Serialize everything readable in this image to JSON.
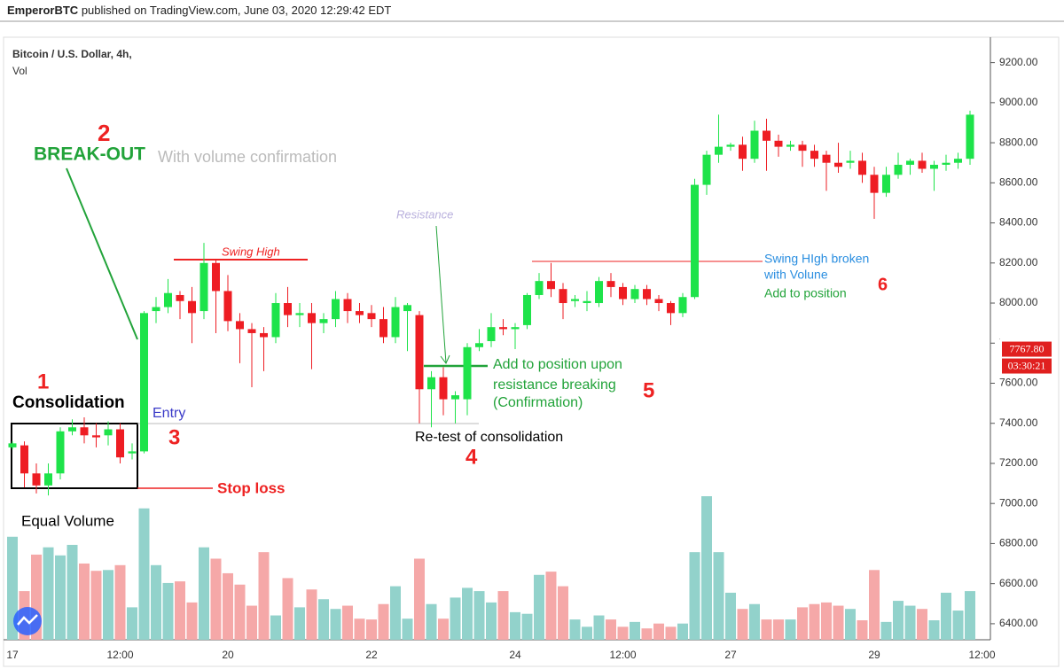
{
  "header": {
    "author": "EmperorBTC",
    "text": "published on TradingView.com, June 03, 2020 12:29:42 EDT"
  },
  "chart_data": {
    "type": "candlestick",
    "title": "Bitcoin / U.S. Dollar, 4h,",
    "subtitle": "Vol",
    "up_color": "#1ee34a",
    "down_color": "#ee1d23",
    "volume_up_color": "#92d2cb",
    "volume_down_color": "#f5a8a8",
    "categories": [
      "17",
      null,
      null,
      null,
      null,
      null,
      null,
      null,
      null,
      "12:00",
      null,
      null,
      null,
      null,
      null,
      null,
      null,
      null,
      "20",
      null,
      null,
      null,
      null,
      null,
      null,
      null,
      null,
      null,
      null,
      null,
      "22",
      null,
      null,
      null,
      null,
      null,
      null,
      null,
      null,
      null,
      null,
      null,
      "24",
      null,
      null,
      null,
      null,
      null,
      null,
      null,
      null,
      "12:00",
      null,
      null,
      null,
      null,
      null,
      null,
      null,
      null,
      "27",
      null,
      null,
      null,
      null,
      null,
      null,
      null,
      null,
      null,
      null,
      null,
      "29",
      null,
      null,
      null,
      null,
      null,
      null,
      null,
      null,
      "12:00"
    ],
    "open": [
      7280,
      7290,
      7150,
      7090,
      7150,
      7360,
      7380,
      7340,
      7340,
      7370,
      7250,
      7260,
      7960,
      7980,
      8040,
      8010,
      7960,
      8200,
      8060,
      7910,
      7870,
      7850,
      7830,
      8000,
      7940,
      7950,
      7900,
      7920,
      8020,
      7960,
      7950,
      7920,
      7830,
      7960,
      7940,
      7570,
      7630,
      7520,
      7520,
      7780,
      7810,
      7880,
      7870,
      7890,
      8040,
      8110,
      8070,
      8010,
      8000,
      8000,
      8110,
      8080,
      8020,
      8070,
      8020,
      8000,
      7950,
      8030,
      8590,
      8740,
      8780,
      8790,
      8720,
      8860,
      8810,
      8780,
      8790,
      8760,
      8740,
      8700,
      8700,
      8710,
      8640,
      8550,
      8640,
      8690,
      8710,
      8670,
      8690,
      8700,
      8720,
      null
    ],
    "high": [
      7310,
      7310,
      7200,
      7200,
      7380,
      7420,
      7430,
      7400,
      7410,
      7400,
      7300,
      7960,
      8030,
      8120,
      8060,
      8080,
      8300,
      8220,
      8140,
      7950,
      7900,
      7880,
      8050,
      8080,
      8000,
      8000,
      7950,
      8060,
      8050,
      8000,
      7990,
      7980,
      8030,
      8000,
      7960,
      7660,
      7680,
      7560,
      7800,
      7870,
      7950,
      7920,
      7900,
      8050,
      8150,
      8200,
      8100,
      8040,
      8060,
      8130,
      8150,
      8100,
      8090,
      8090,
      8040,
      8010,
      8050,
      8620,
      8760,
      8940,
      8800,
      8830,
      8910,
      8920,
      8840,
      8810,
      8810,
      8790,
      8760,
      8800,
      8760,
      8750,
      8680,
      8680,
      8750,
      8720,
      8750,
      8710,
      8740,
      8750,
      8960,
      null
    ],
    "low": [
      7270,
      7080,
      7050,
      7040,
      7120,
      7340,
      7300,
      7280,
      7290,
      7200,
      7220,
      7250,
      7900,
      7950,
      7920,
      7800,
      7920,
      7850,
      7860,
      7700,
      7580,
      7660,
      7800,
      7880,
      7880,
      7670,
      7850,
      7880,
      7900,
      7900,
      7880,
      7800,
      7800,
      7760,
      7400,
      7380,
      7440,
      7400,
      7440,
      7760,
      7780,
      7840,
      7770,
      7870,
      8020,
      8030,
      7920,
      7980,
      7960,
      7980,
      8030,
      7990,
      8000,
      7990,
      7960,
      7890,
      7930,
      8020,
      8540,
      8700,
      8760,
      8660,
      8700,
      8660,
      8730,
      8760,
      8680,
      8680,
      8560,
      8650,
      8670,
      8600,
      8420,
      8530,
      8620,
      8640,
      8650,
      8560,
      8660,
      8670,
      8690,
      null
    ],
    "close": [
      7300,
      7150,
      7090,
      7150,
      7360,
      7380,
      7340,
      7330,
      7370,
      7230,
      7260,
      7950,
      7980,
      8050,
      8010,
      7950,
      8200,
      8060,
      7910,
      7870,
      7850,
      7830,
      8000,
      7940,
      7950,
      7900,
      7920,
      8020,
      7960,
      7940,
      7920,
      7830,
      7980,
      7990,
      7570,
      7630,
      7520,
      7540,
      7780,
      7800,
      7880,
      7870,
      7880,
      8040,
      8110,
      8070,
      8000,
      8020,
      8010,
      8110,
      8080,
      8020,
      8070,
      8020,
      8000,
      7950,
      8030,
      8590,
      8740,
      8780,
      8790,
      8720,
      8860,
      8810,
      8780,
      8790,
      8760,
      8720,
      8700,
      8680,
      8710,
      8640,
      8550,
      8640,
      8690,
      8710,
      8670,
      8690,
      8700,
      8720,
      8940,
      null
    ],
    "volume": [
      127,
      60,
      105,
      114,
      104,
      117,
      94,
      85,
      86,
      92,
      40,
      162,
      92,
      70,
      72,
      46,
      114,
      100,
      82,
      68,
      42,
      108,
      30,
      76,
      40,
      62,
      50,
      38,
      42,
      26,
      25,
      44,
      66,
      26,
      100,
      44,
      26,
      52,
      64,
      60,
      46,
      60,
      34,
      32,
      80,
      84,
      66,
      25,
      16,
      30,
      25,
      16,
      22,
      14,
      20,
      16,
      20,
      108,
      177,
      108,
      58,
      38,
      44,
      25,
      25,
      25,
      40,
      44,
      46,
      42,
      38,
      24,
      86,
      22,
      48,
      42,
      38,
      24,
      58,
      36,
      60,
      null
    ],
    "ylim": [
      6320,
      9300
    ],
    "yticks": [
      {
        "value": 6400,
        "label": "6400.00"
      },
      {
        "value": 6600,
        "label": "6600.00"
      },
      {
        "value": 6800,
        "label": "6800.00"
      },
      {
        "value": 7000,
        "label": "7000.00"
      },
      {
        "value": 7200,
        "label": "7200.00"
      },
      {
        "value": 7400,
        "label": "7400.00"
      },
      {
        "value": 7600,
        "label": "7600.00"
      },
      {
        "value": 7800,
        "label": "7800.00"
      },
      {
        "value": 8000,
        "label": "8000.00"
      },
      {
        "value": 8200,
        "label": "8200.00"
      },
      {
        "value": 8400,
        "label": "8400.00"
      },
      {
        "value": 8600,
        "label": "8600.00"
      },
      {
        "value": 8800,
        "label": "8800.00"
      },
      {
        "value": 9000,
        "label": "9000.00"
      },
      {
        "value": 9200,
        "label": "9200.00"
      }
    ],
    "price_tag": {
      "value": 7767.8,
      "label": "7767.80",
      "countdown": "03:30:21"
    },
    "annotations": [
      "1",
      "Consolidation",
      "2",
      "BREAK-OUT",
      "With volume confirmation",
      "Entry",
      "3",
      "Stop loss",
      "Equal Volume",
      "Swing High",
      "Resistance",
      "Add to position upon",
      "resistance breaking",
      "(Confirmation)",
      "5",
      "Re-test of consolidation",
      "4",
      "Swing HIgh broken",
      "with Volune",
      "Add to position",
      "6"
    ]
  }
}
